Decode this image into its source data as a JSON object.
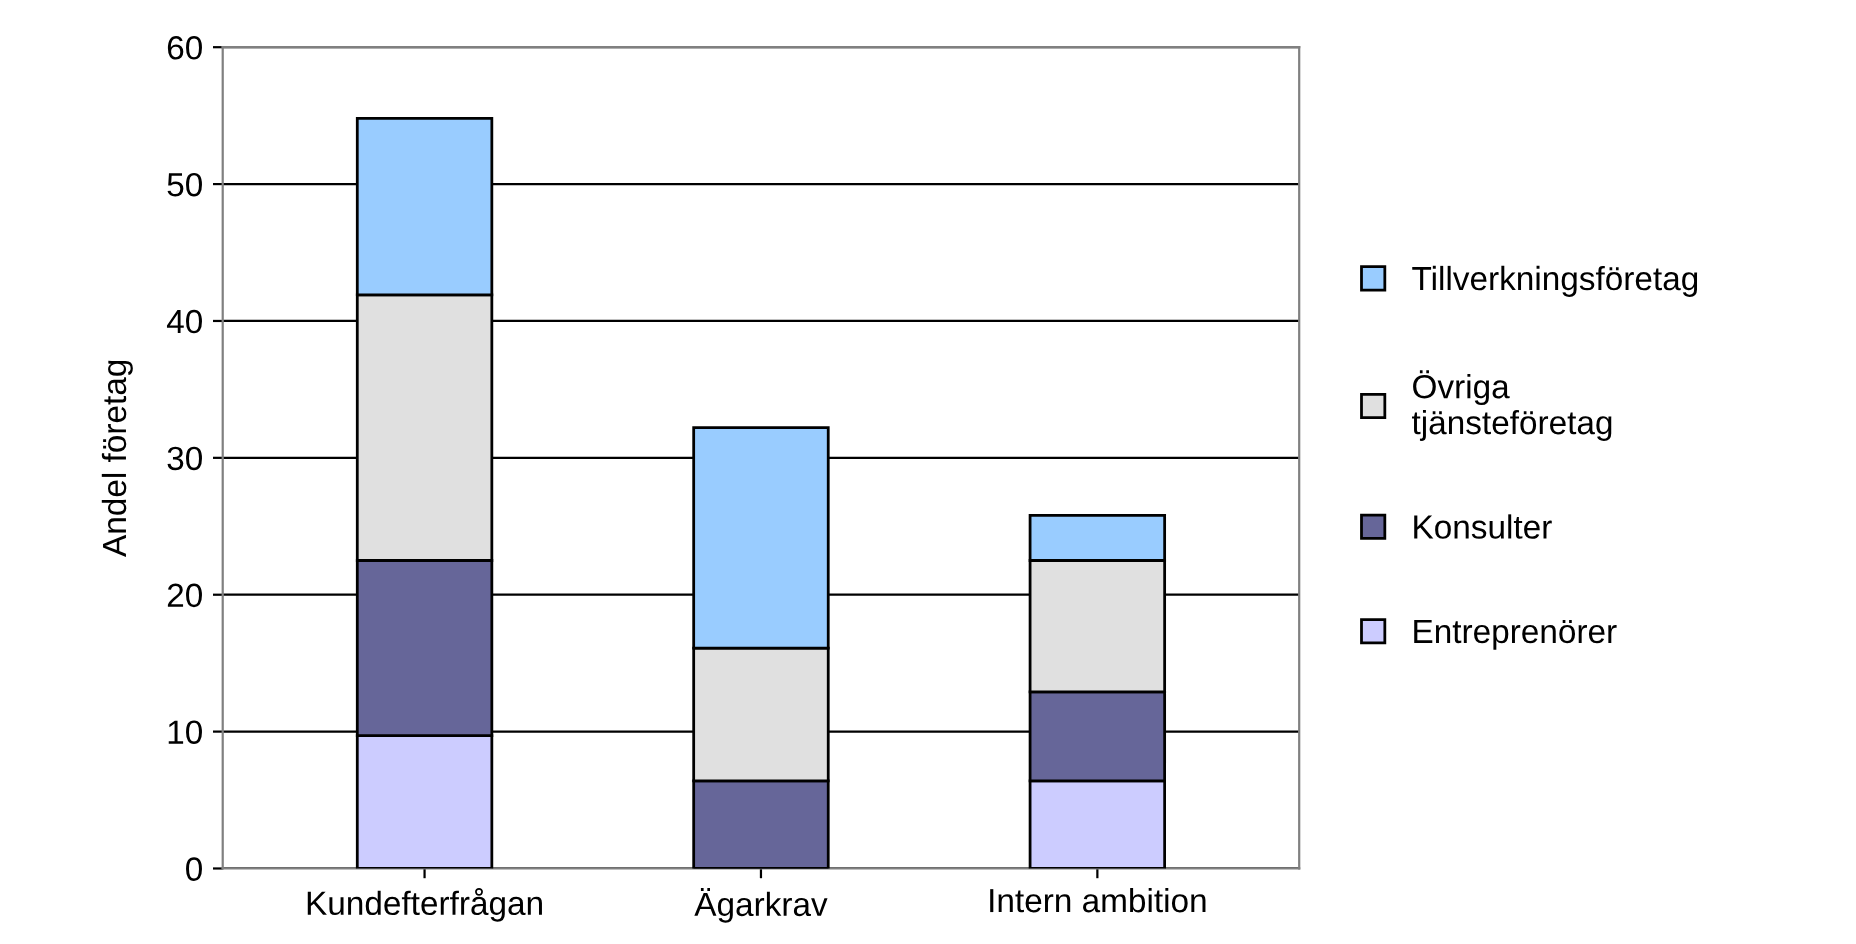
{
  "chart_data": {
    "type": "bar",
    "stacked": true,
    "ylabel": "Andel företag",
    "categories": [
      "Kundefterfrågan",
      "Ägarkrav",
      "Intern ambition"
    ],
    "series": [
      {
        "name": "Entreprenörer",
        "color": "#ccccff",
        "values": [
          9.7,
          0,
          6.4
        ]
      },
      {
        "name": "Konsulter",
        "color": "#666699",
        "values": [
          12.8,
          6.4,
          6.5
        ]
      },
      {
        "name": "Övriga tjänsteföretag",
        "color": "#e0e0e0",
        "values": [
          19.4,
          9.7,
          9.6
        ]
      },
      {
        "name": "Tillverkningsföretag",
        "color": "#99ccff",
        "values": [
          12.9,
          16.1,
          3.3
        ]
      }
    ],
    "ylim": [
      0,
      60
    ],
    "yticks": [
      0,
      10,
      20,
      30,
      40,
      50,
      60
    ],
    "grid": "y",
    "legend": "right"
  }
}
